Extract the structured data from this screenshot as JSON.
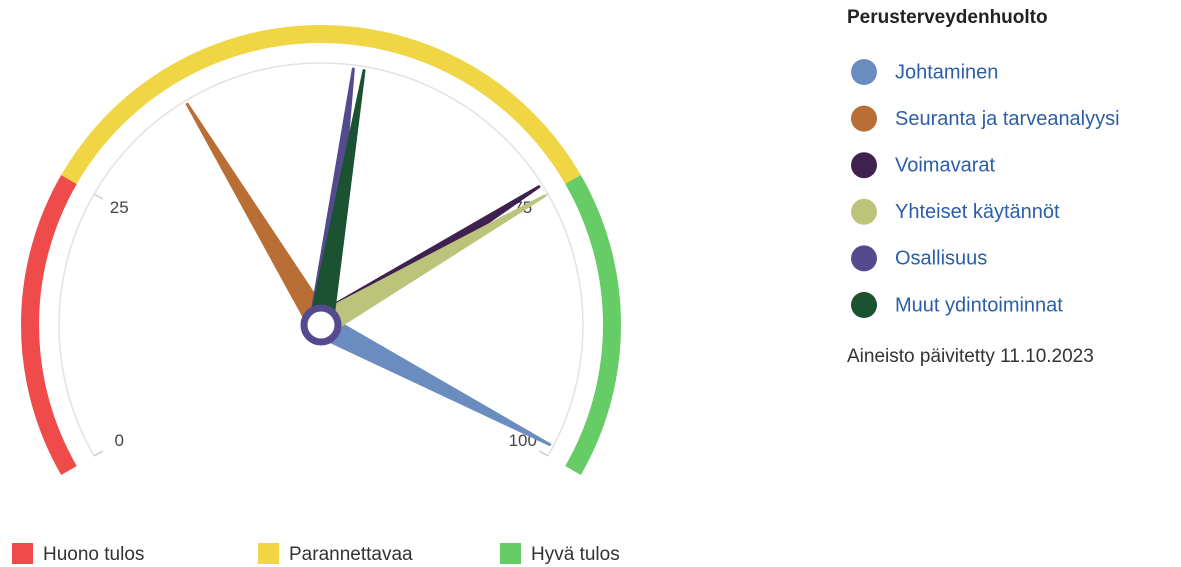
{
  "chart_data": {
    "type": "gauge",
    "title": "Perusterveydenhuolto",
    "note": "Aineisto päivitetty 11.10.2023",
    "ylim": [
      0,
      100
    ],
    "yticks": [
      0,
      25,
      75,
      100
    ],
    "bands": [
      {
        "name": "Huono tulos",
        "color": "#ef4b4b",
        "from": 0,
        "to": 25
      },
      {
        "name": "Parannettavaa",
        "color": "#f0d545",
        "from": 25,
        "to": 75
      },
      {
        "name": "Hyvä tulos",
        "color": "#66cc66",
        "from": 75,
        "to": 100
      }
    ],
    "series": [
      {
        "name": "Johtaminen",
        "color": "#6b8cbf",
        "value": 99
      },
      {
        "name": "Seuranta ja tarveanalyysi",
        "color": "#b86e35",
        "value": 37
      },
      {
        "name": "Voimavarat",
        "color": "#3f2150",
        "value": 74
      },
      {
        "name": "Yhteiset käytännöt",
        "color": "#bcc47c",
        "value": 75
      },
      {
        "name": "Osallisuus",
        "color": "#534b8d",
        "value": 53
      },
      {
        "name": "Muut ydintoiminnat",
        "color": "#1a5232",
        "value": 54
      }
    ]
  }
}
